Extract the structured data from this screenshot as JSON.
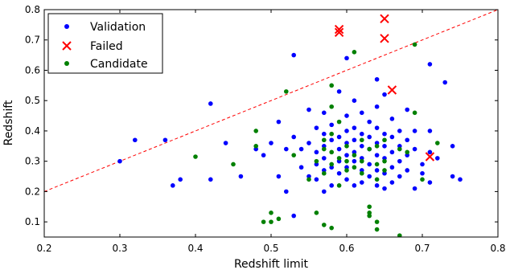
{
  "chart_data": {
    "type": "scatter",
    "xlabel": "Redshift limit",
    "ylabel": "Redshift",
    "xlim": [
      0.2,
      0.8
    ],
    "ylim": [
      0.05,
      0.8
    ],
    "x_ticks": [
      "0.2",
      "0.3",
      "0.4",
      "0.5",
      "0.6",
      "0.7",
      "0.8"
    ],
    "y_ticks": [
      "0.1",
      "0.2",
      "0.3",
      "0.4",
      "0.5",
      "0.6",
      "0.7",
      "0.8"
    ],
    "legend_position": "top-left",
    "reference_line": {
      "style": "dashed",
      "color": "#ff0000",
      "points": [
        [
          0.2,
          0.2
        ],
        [
          0.8,
          0.8
        ]
      ]
    },
    "series": [
      {
        "name": "Validation",
        "marker": "dot",
        "color": "#0000ff",
        "points": [
          [
            0.3,
            0.3
          ],
          [
            0.32,
            0.37
          ],
          [
            0.36,
            0.37
          ],
          [
            0.37,
            0.22
          ],
          [
            0.38,
            0.24
          ],
          [
            0.42,
            0.49
          ],
          [
            0.42,
            0.24
          ],
          [
            0.44,
            0.36
          ],
          [
            0.46,
            0.25
          ],
          [
            0.48,
            0.34
          ],
          [
            0.49,
            0.32
          ],
          [
            0.5,
            0.36
          ],
          [
            0.51,
            0.43
          ],
          [
            0.51,
            0.25
          ],
          [
            0.52,
            0.34
          ],
          [
            0.52,
            0.2
          ],
          [
            0.53,
            0.65
          ],
          [
            0.53,
            0.38
          ],
          [
            0.53,
            0.12
          ],
          [
            0.54,
            0.34
          ],
          [
            0.54,
            0.28
          ],
          [
            0.55,
            0.47
          ],
          [
            0.55,
            0.36
          ],
          [
            0.55,
            0.25
          ],
          [
            0.56,
            0.41
          ],
          [
            0.56,
            0.33
          ],
          [
            0.56,
            0.29
          ],
          [
            0.56,
            0.24
          ],
          [
            0.57,
            0.46
          ],
          [
            0.57,
            0.39
          ],
          [
            0.57,
            0.35
          ],
          [
            0.57,
            0.31
          ],
          [
            0.57,
            0.27
          ],
          [
            0.57,
            0.2
          ],
          [
            0.58,
            0.42
          ],
          [
            0.58,
            0.37
          ],
          [
            0.58,
            0.28
          ],
          [
            0.58,
            0.22
          ],
          [
            0.59,
            0.53
          ],
          [
            0.59,
            0.38
          ],
          [
            0.59,
            0.34
          ],
          [
            0.59,
            0.3
          ],
          [
            0.59,
            0.26
          ],
          [
            0.6,
            0.64
          ],
          [
            0.6,
            0.45
          ],
          [
            0.6,
            0.4
          ],
          [
            0.6,
            0.36
          ],
          [
            0.6,
            0.32
          ],
          [
            0.6,
            0.28
          ],
          [
            0.6,
            0.24
          ],
          [
            0.61,
            0.5
          ],
          [
            0.61,
            0.41
          ],
          [
            0.61,
            0.37
          ],
          [
            0.61,
            0.33
          ],
          [
            0.61,
            0.3
          ],
          [
            0.61,
            0.22
          ],
          [
            0.62,
            0.46
          ],
          [
            0.62,
            0.39
          ],
          [
            0.62,
            0.35
          ],
          [
            0.62,
            0.31
          ],
          [
            0.62,
            0.27
          ],
          [
            0.62,
            0.23
          ],
          [
            0.63,
            0.43
          ],
          [
            0.63,
            0.38
          ],
          [
            0.63,
            0.34
          ],
          [
            0.63,
            0.29
          ],
          [
            0.63,
            0.25
          ],
          [
            0.64,
            0.57
          ],
          [
            0.64,
            0.48
          ],
          [
            0.64,
            0.41
          ],
          [
            0.64,
            0.36
          ],
          [
            0.64,
            0.32
          ],
          [
            0.64,
            0.27
          ],
          [
            0.64,
            0.22
          ],
          [
            0.65,
            0.52
          ],
          [
            0.65,
            0.39
          ],
          [
            0.65,
            0.35
          ],
          [
            0.65,
            0.31
          ],
          [
            0.65,
            0.26
          ],
          [
            0.65,
            0.21
          ],
          [
            0.66,
            0.44
          ],
          [
            0.66,
            0.38
          ],
          [
            0.66,
            0.33
          ],
          [
            0.66,
            0.28
          ],
          [
            0.66,
            0.23
          ],
          [
            0.67,
            0.4
          ],
          [
            0.67,
            0.35
          ],
          [
            0.67,
            0.3
          ],
          [
            0.67,
            0.25
          ],
          [
            0.68,
            0.47
          ],
          [
            0.68,
            0.37
          ],
          [
            0.68,
            0.32
          ],
          [
            0.68,
            0.27
          ],
          [
            0.69,
            0.4
          ],
          [
            0.69,
            0.34
          ],
          [
            0.69,
            0.21
          ],
          [
            0.7,
            0.29
          ],
          [
            0.7,
            0.26
          ],
          [
            0.71,
            0.62
          ],
          [
            0.71,
            0.4
          ],
          [
            0.71,
            0.33
          ],
          [
            0.71,
            0.23
          ],
          [
            0.72,
            0.31
          ],
          [
            0.73,
            0.56
          ],
          [
            0.74,
            0.35
          ],
          [
            0.74,
            0.25
          ],
          [
            0.75,
            0.24
          ]
        ]
      },
      {
        "name": "Failed",
        "marker": "x",
        "color": "#ff0000",
        "points": [
          [
            0.59,
            0.735
          ],
          [
            0.59,
            0.725
          ],
          [
            0.65,
            0.77
          ],
          [
            0.65,
            0.705
          ],
          [
            0.66,
            0.535
          ],
          [
            0.71,
            0.315
          ]
        ]
      },
      {
        "name": "Candidate",
        "marker": "dot",
        "color": "#008000",
        "points": [
          [
            0.4,
            0.315
          ],
          [
            0.45,
            0.29
          ],
          [
            0.48,
            0.4
          ],
          [
            0.48,
            0.35
          ],
          [
            0.49,
            0.1
          ],
          [
            0.5,
            0.13
          ],
          [
            0.5,
            0.1
          ],
          [
            0.51,
            0.11
          ],
          [
            0.52,
            0.53
          ],
          [
            0.53,
            0.32
          ],
          [
            0.55,
            0.24
          ],
          [
            0.56,
            0.13
          ],
          [
            0.56,
            0.3
          ],
          [
            0.57,
            0.37
          ],
          [
            0.57,
            0.34
          ],
          [
            0.57,
            0.26
          ],
          [
            0.57,
            0.09
          ],
          [
            0.58,
            0.55
          ],
          [
            0.58,
            0.48
          ],
          [
            0.58,
            0.39
          ],
          [
            0.58,
            0.33
          ],
          [
            0.58,
            0.29
          ],
          [
            0.58,
            0.08
          ],
          [
            0.59,
            0.43
          ],
          [
            0.59,
            0.31
          ],
          [
            0.59,
            0.22
          ],
          [
            0.6,
            0.35
          ],
          [
            0.6,
            0.3
          ],
          [
            0.6,
            0.27
          ],
          [
            0.61,
            0.66
          ],
          [
            0.61,
            0.32
          ],
          [
            0.61,
            0.28
          ],
          [
            0.62,
            0.37
          ],
          [
            0.62,
            0.3
          ],
          [
            0.62,
            0.26
          ],
          [
            0.63,
            0.34
          ],
          [
            0.63,
            0.15
          ],
          [
            0.63,
            0.13
          ],
          [
            0.63,
            0.12
          ],
          [
            0.64,
            0.35
          ],
          [
            0.64,
            0.29
          ],
          [
            0.64,
            0.24
          ],
          [
            0.64,
            0.1
          ],
          [
            0.64,
            0.075
          ],
          [
            0.65,
            0.37
          ],
          [
            0.65,
            0.3
          ],
          [
            0.65,
            0.27
          ],
          [
            0.67,
            0.34
          ],
          [
            0.67,
            0.055
          ],
          [
            0.68,
            0.33
          ],
          [
            0.69,
            0.685
          ],
          [
            0.69,
            0.46
          ],
          [
            0.7,
            0.24
          ],
          [
            0.72,
            0.36
          ]
        ]
      }
    ]
  }
}
